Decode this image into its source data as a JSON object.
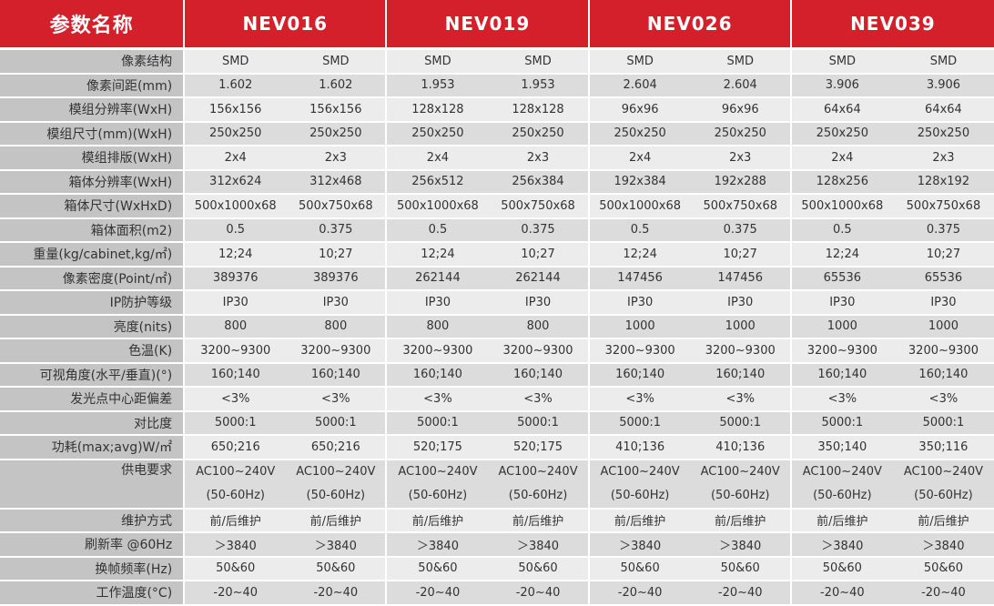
{
  "header": {
    "label": "参数名称",
    "models": [
      "NEV016",
      "NEV019",
      "NEV026",
      "NEV039"
    ]
  },
  "rows": [
    {
      "label": "像素结构",
      "values": [
        "SMD",
        "SMD",
        "SMD",
        "SMD",
        "SMD",
        "SMD",
        "SMD",
        "SMD"
      ]
    },
    {
      "label": "像素间距(mm)",
      "values": [
        "1.602",
        "1.602",
        "1.953",
        "1.953",
        "2.604",
        "2.604",
        "3.906",
        "3.906"
      ]
    },
    {
      "label": "模组分辨率(WxH)",
      "values": [
        "156x156",
        "156x156",
        "128x128",
        "128x128",
        "96x96",
        "96x96",
        "64x64",
        "64x64"
      ]
    },
    {
      "label": "模组尺寸(mm)(WxH)",
      "values": [
        "250x250",
        "250x250",
        "250x250",
        "250x250",
        "250x250",
        "250x250",
        "250x250",
        "250x250"
      ]
    },
    {
      "label": "模组排版(WxH)",
      "values": [
        "2x4",
        "2x3",
        "2x4",
        "2x3",
        "2x4",
        "2x3",
        "2x4",
        "2x3"
      ]
    },
    {
      "label": "箱体分辨率(WxH)",
      "values": [
        "312x624",
        "312x468",
        "256x512",
        "256x384",
        "192x384",
        "192x288",
        "128x256",
        "128x192"
      ]
    },
    {
      "label": "箱体尺寸(WxHxD)",
      "values": [
        "500x1000x68",
        "500x750x68",
        "500x1000x68",
        "500x750x68",
        "500x1000x68",
        "500x750x68",
        "500x1000x68",
        "500x750x68"
      ]
    },
    {
      "label": "箱体面积(m2)",
      "values": [
        "0.5",
        "0.375",
        "0.5",
        "0.375",
        "0.5",
        "0.375",
        "0.5",
        "0.375"
      ]
    },
    {
      "label": "重量(kg/cabinet,kg/㎡)",
      "values": [
        "12;24",
        "10;27",
        "12;24",
        "10;27",
        "12;24",
        "10;27",
        "12;24",
        "10;27"
      ]
    },
    {
      "label": "像素密度(Point/㎡)",
      "values": [
        "389376",
        "389376",
        "262144",
        "262144",
        "147456",
        "147456",
        "65536",
        "65536"
      ]
    },
    {
      "label": "IP防护等级",
      "values": [
        "IP30",
        "IP30",
        "IP30",
        "IP30",
        "IP30",
        "IP30",
        "IP30",
        "IP30"
      ]
    },
    {
      "label": "亮度(nits)",
      "values": [
        "800",
        "800",
        "800",
        "800",
        "1000",
        "1000",
        "1000",
        "1000"
      ]
    },
    {
      "label": "色温(K)",
      "values": [
        "3200~9300",
        "3200~9300",
        "3200~9300",
        "3200~9300",
        "3200~9300",
        "3200~9300",
        "3200~9300",
        "3200~9300"
      ]
    },
    {
      "label": "可视角度(水平/垂直)(°)",
      "values": [
        "160;140",
        "160;140",
        "160;140",
        "160;140",
        "160;140",
        "160;140",
        "160;140",
        "160;140"
      ]
    },
    {
      "label": "发光点中心距偏差",
      "values": [
        "<3%",
        "<3%",
        "<3%",
        "<3%",
        "<3%",
        "<3%",
        "<3%",
        "<3%"
      ]
    },
    {
      "label": "对比度",
      "values": [
        "5000:1",
        "5000:1",
        "5000:1",
        "5000:1",
        "5000:1",
        "5000:1",
        "5000:1",
        "5000:1"
      ]
    },
    {
      "label": "功耗(max;avg)W/㎡",
      "values": [
        "650;216",
        "650;216",
        "520;175",
        "520;175",
        "410;136",
        "410;136",
        "350;140",
        "350;116"
      ]
    },
    {
      "label": "供电要求",
      "values": [
        "AC100~240V (50-60Hz)",
        "AC100~240V (50-60Hz)",
        "AC100~240V (50-60Hz)",
        "AC100~240V (50-60Hz)",
        "AC100~240V (50-60Hz)",
        "AC100~240V (50-60Hz)",
        "AC100~240V (50-60Hz)",
        "AC100~240V (50-60Hz)"
      ]
    },
    {
      "label": "维护方式",
      "values": [
        "前/后维护",
        "前/后维护",
        "前/后维护",
        "前/后维护",
        "前/后维护",
        "前/后维护",
        "前/后维护",
        "前/后维护"
      ]
    },
    {
      "label": "刷新率 @60Hz",
      "values": [
        "＞3840",
        "＞3840",
        "＞3840",
        "＞3840",
        "＞3840",
        "＞3840",
        "＞3840",
        "＞3840"
      ]
    },
    {
      "label": "换帧频率(Hz)",
      "values": [
        "50&60",
        "50&60",
        "50&60",
        "50&60",
        "50&60",
        "50&60",
        "50&60",
        "50&60"
      ]
    },
    {
      "label": "工作温度(°C)",
      "values": [
        "-20~40",
        "-20~40",
        "-20~40",
        "-20~40",
        "-20~40",
        "-20~40",
        "-20~40",
        "-20~40"
      ]
    }
  ]
}
